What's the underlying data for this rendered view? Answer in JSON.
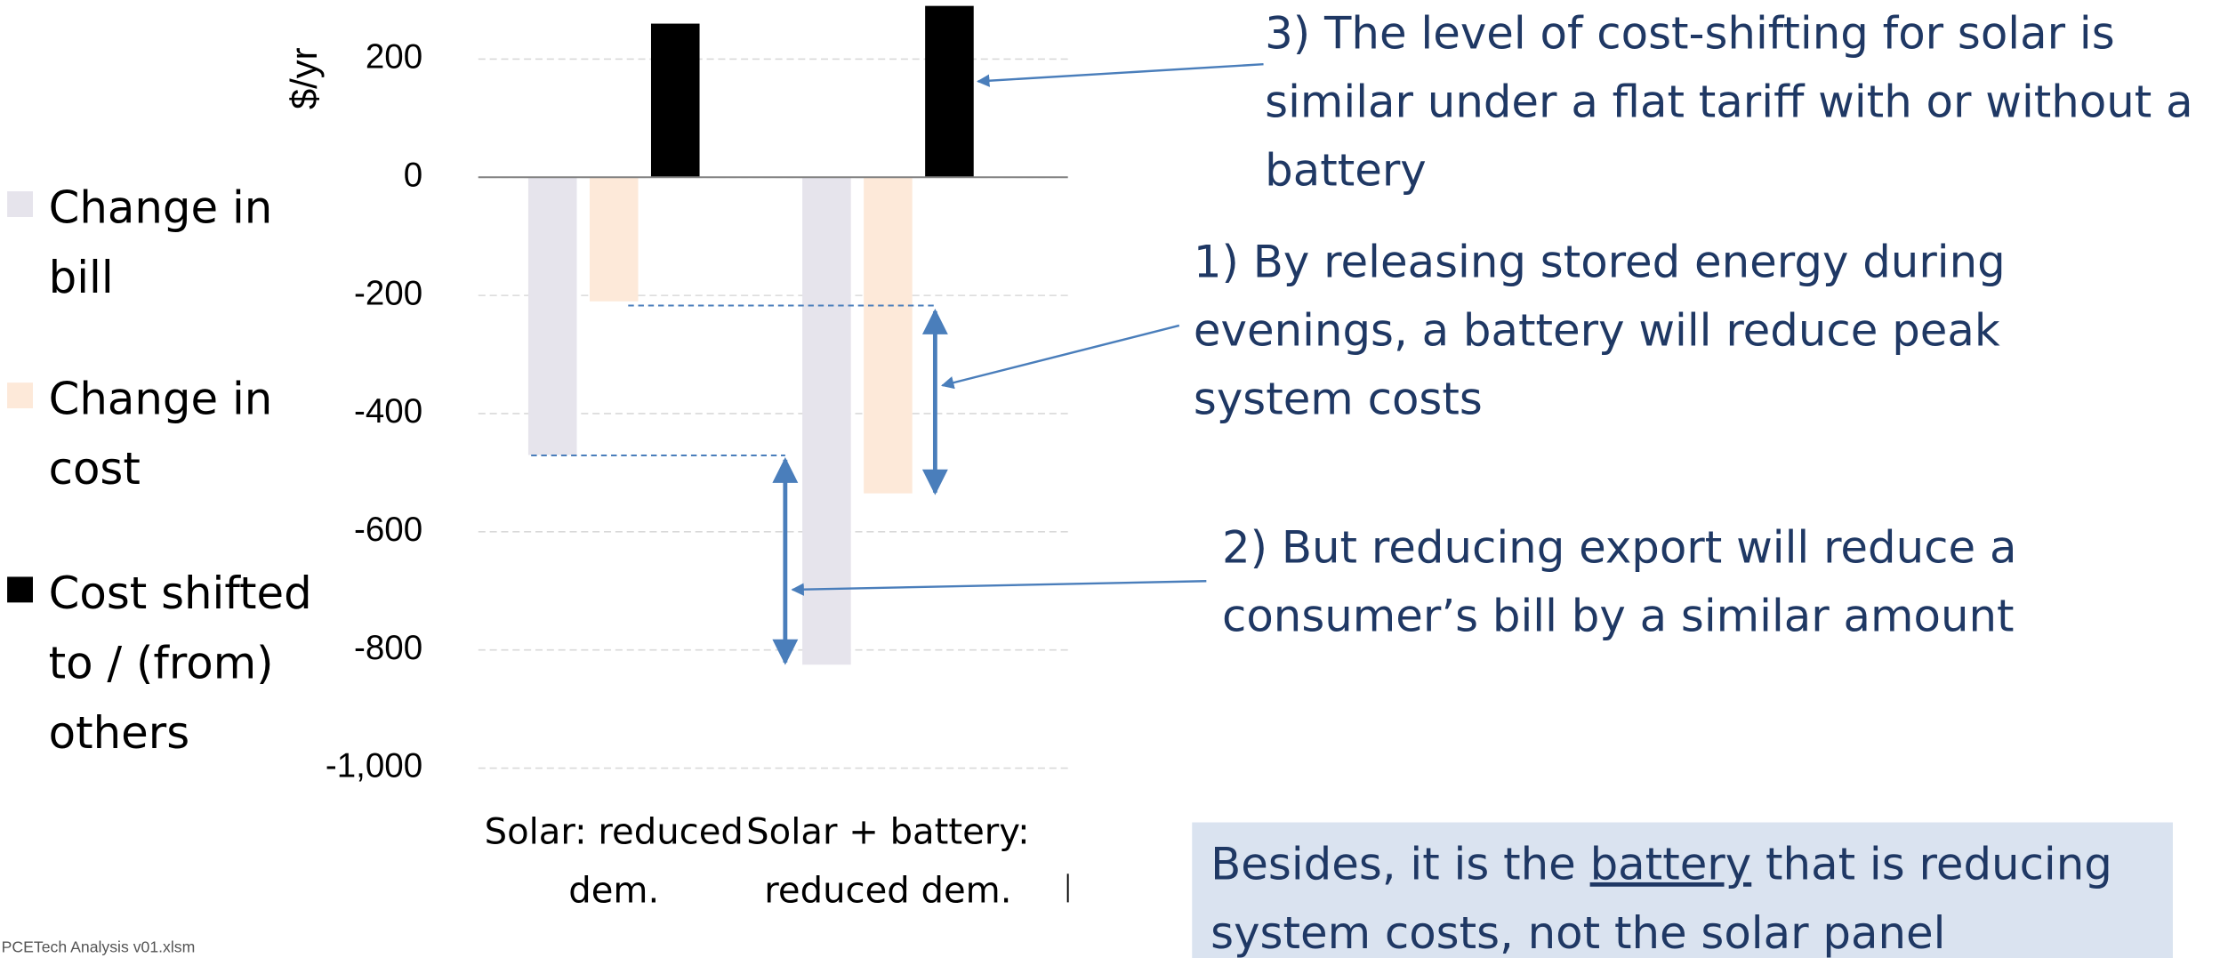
{
  "chart_data": {
    "type": "bar",
    "y_label": "$/yr",
    "categories": [
      "Solar: reduced dem.",
      "Solar + battery: reduced dem."
    ],
    "series": [
      {
        "name": "Change in bill",
        "color": "#e6e4ec",
        "values": [
          -470,
          -825
        ]
      },
      {
        "name": "Change in cost",
        "color": "#fde9d9",
        "values": [
          -210,
          -535
        ]
      },
      {
        "name": "Cost shifted to / (from) others",
        "color": "#000000",
        "values": [
          260,
          290
        ]
      }
    ],
    "ylim": [
      -1000,
      300
    ],
    "yticks": [
      {
        "value": -1000,
        "label": "-1,000"
      },
      -800,
      -600,
      -400,
      -200,
      0,
      200
    ],
    "grid": true,
    "legend": "left",
    "annotations": [
      "3) The level of cost-shifting for solar is similar under a flat tariff  with or without a battery",
      "1) By releasing stored energy during evenings, a battery will reduce peak system costs",
      "2) But reducing  export will reduce a consumer’s bill by a similar amount"
    ],
    "callout": {
      "before": "Besides, it is the ",
      "underlined": "battery",
      "after": " that is reducing system costs, not the solar panel"
    },
    "source": "PCETech Analysis v01.xlsm"
  }
}
